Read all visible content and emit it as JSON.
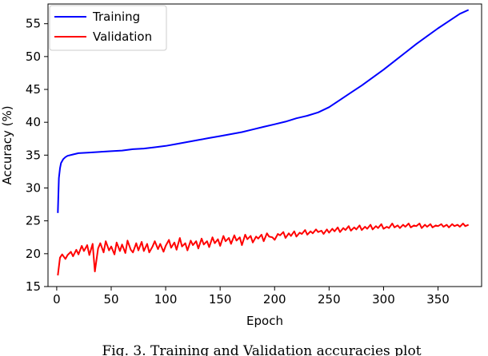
{
  "chart_data": {
    "type": "line",
    "xlabel": "Epoch",
    "ylabel": "Accuracy (%)",
    "xlim": [
      -8,
      390
    ],
    "ylim": [
      15,
      58
    ],
    "x_ticks": [
      0,
      50,
      100,
      150,
      200,
      250,
      300,
      350
    ],
    "y_ticks": [
      15,
      20,
      25,
      30,
      35,
      40,
      45,
      50,
      55
    ],
    "grid": false,
    "legend": "top-left",
    "series": [
      {
        "name": "Training",
        "color": "#0000ff",
        "x": [
          1,
          2,
          3,
          4,
          6,
          8,
          10,
          15,
          20,
          30,
          40,
          50,
          60,
          70,
          80,
          90,
          100,
          110,
          120,
          130,
          140,
          150,
          160,
          170,
          180,
          190,
          200,
          210,
          220,
          230,
          240,
          250,
          260,
          270,
          280,
          290,
          300,
          310,
          320,
          330,
          340,
          350,
          360,
          370,
          378
        ],
        "y": [
          26.2,
          31.5,
          33.0,
          33.8,
          34.4,
          34.7,
          34.9,
          35.1,
          35.3,
          35.4,
          35.5,
          35.6,
          35.7,
          35.9,
          36.0,
          36.2,
          36.4,
          36.7,
          37.0,
          37.3,
          37.6,
          37.9,
          38.2,
          38.5,
          38.9,
          39.3,
          39.7,
          40.1,
          40.6,
          41.0,
          41.5,
          42.3,
          43.4,
          44.5,
          45.6,
          46.8,
          48.0,
          49.3,
          50.6,
          51.9,
          53.1,
          54.3,
          55.4,
          56.5,
          57.1
        ]
      },
      {
        "name": "Validation",
        "color": "#ff0000",
        "x": [
          1,
          3,
          5,
          8,
          10,
          13,
          15,
          18,
          20,
          23,
          25,
          28,
          30,
          33,
          35,
          38,
          40,
          43,
          45,
          48,
          50,
          53,
          55,
          58,
          60,
          63,
          65,
          68,
          70,
          73,
          75,
          78,
          80,
          83,
          85,
          88,
          90,
          93,
          95,
          98,
          100,
          103,
          105,
          108,
          110,
          113,
          115,
          118,
          120,
          123,
          125,
          128,
          130,
          133,
          135,
          138,
          140,
          143,
          145,
          148,
          150,
          153,
          155,
          158,
          160,
          163,
          165,
          168,
          170,
          173,
          175,
          178,
          180,
          183,
          185,
          188,
          190,
          193,
          195,
          198,
          200,
          203,
          205,
          208,
          210,
          213,
          215,
          218,
          220,
          223,
          225,
          228,
          230,
          233,
          235,
          238,
          240,
          243,
          245,
          248,
          250,
          253,
          255,
          258,
          260,
          263,
          265,
          268,
          270,
          273,
          275,
          278,
          280,
          283,
          285,
          288,
          290,
          293,
          295,
          298,
          300,
          303,
          305,
          308,
          310,
          313,
          315,
          318,
          320,
          323,
          325,
          328,
          330,
          333,
          335,
          338,
          340,
          343,
          345,
          348,
          350,
          353,
          355,
          358,
          360,
          363,
          365,
          368,
          370,
          373,
          375,
          378
        ],
        "y": [
          16.7,
          19.4,
          19.9,
          19.2,
          19.8,
          20.3,
          19.6,
          20.6,
          19.9,
          21.2,
          20.4,
          21.3,
          19.8,
          21.5,
          17.3,
          20.8,
          21.6,
          20.2,
          21.9,
          20.5,
          21.1,
          19.9,
          21.7,
          20.4,
          21.4,
          20.1,
          22.0,
          20.6,
          20.2,
          21.6,
          20.5,
          21.8,
          20.4,
          21.5,
          20.2,
          21.1,
          21.9,
          20.7,
          21.5,
          20.3,
          21.2,
          22.1,
          20.9,
          21.7,
          20.6,
          22.4,
          21.1,
          21.6,
          20.5,
          22.0,
          21.3,
          21.9,
          20.8,
          22.3,
          21.4,
          21.9,
          21.0,
          22.5,
          21.6,
          22.2,
          21.2,
          22.7,
          21.9,
          22.4,
          21.5,
          22.8,
          22.0,
          22.5,
          21.3,
          22.9,
          22.2,
          22.7,
          21.7,
          22.6,
          22.3,
          22.9,
          21.9,
          23.1,
          22.6,
          22.5,
          22.1,
          23.0,
          22.8,
          23.3,
          22.4,
          23.1,
          22.7,
          23.4,
          22.6,
          23.2,
          23.0,
          23.6,
          22.9,
          23.4,
          23.1,
          23.7,
          23.3,
          23.5,
          23.0,
          23.7,
          23.2,
          23.8,
          23.4,
          24.0,
          23.3,
          23.9,
          23.6,
          24.2,
          23.5,
          24.0,
          23.7,
          24.3,
          23.6,
          24.1,
          23.8,
          24.4,
          23.7,
          24.2,
          23.9,
          24.5,
          23.8,
          24.1,
          23.9,
          24.6,
          24.0,
          24.3,
          23.9,
          24.4,
          24.1,
          24.6,
          24.0,
          24.3,
          24.2,
          24.6,
          23.9,
          24.4,
          24.1,
          24.5,
          24.0,
          24.3,
          24.2,
          24.5,
          24.1,
          24.4,
          24.0,
          24.5,
          24.2,
          24.4,
          24.1,
          24.6,
          24.2,
          24.4
        ]
      }
    ]
  },
  "caption": "Fig. 3.   Training and Validation accuracies plot"
}
